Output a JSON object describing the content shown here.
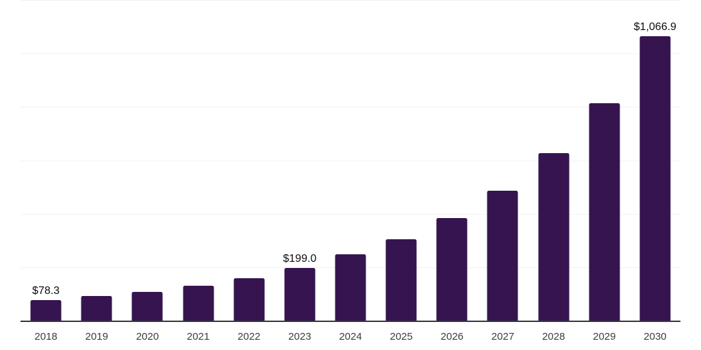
{
  "chart_data": {
    "type": "bar",
    "title": "",
    "xlabel": "",
    "ylabel": "",
    "categories": [
      "2018",
      "2019",
      "2020",
      "2021",
      "2022",
      "2023",
      "2024",
      "2025",
      "2026",
      "2027",
      "2028",
      "2029",
      "2030"
    ],
    "values": [
      78.3,
      94,
      110,
      133,
      162,
      199.0,
      250,
      307,
      386,
      490,
      630,
      816,
      1066.9
    ],
    "value_labels": [
      "$78.3",
      "",
      "",
      "",
      "",
      "$199.0",
      "",
      "",
      "",
      "",
      "",
      "",
      "$1,066.9"
    ],
    "ylim": [
      0,
      1200
    ],
    "gridline_step": 200,
    "grid": "horizontal-only",
    "legend": "none",
    "y_axis_tick_labels_visible": false,
    "colors": {
      "bar": "#361450",
      "gridline": "#f2f2f2",
      "axis_line": "#34373c",
      "tick_label": "#3d3d3d",
      "value_label": "#0d0d0d",
      "background": "#ffffff"
    }
  }
}
